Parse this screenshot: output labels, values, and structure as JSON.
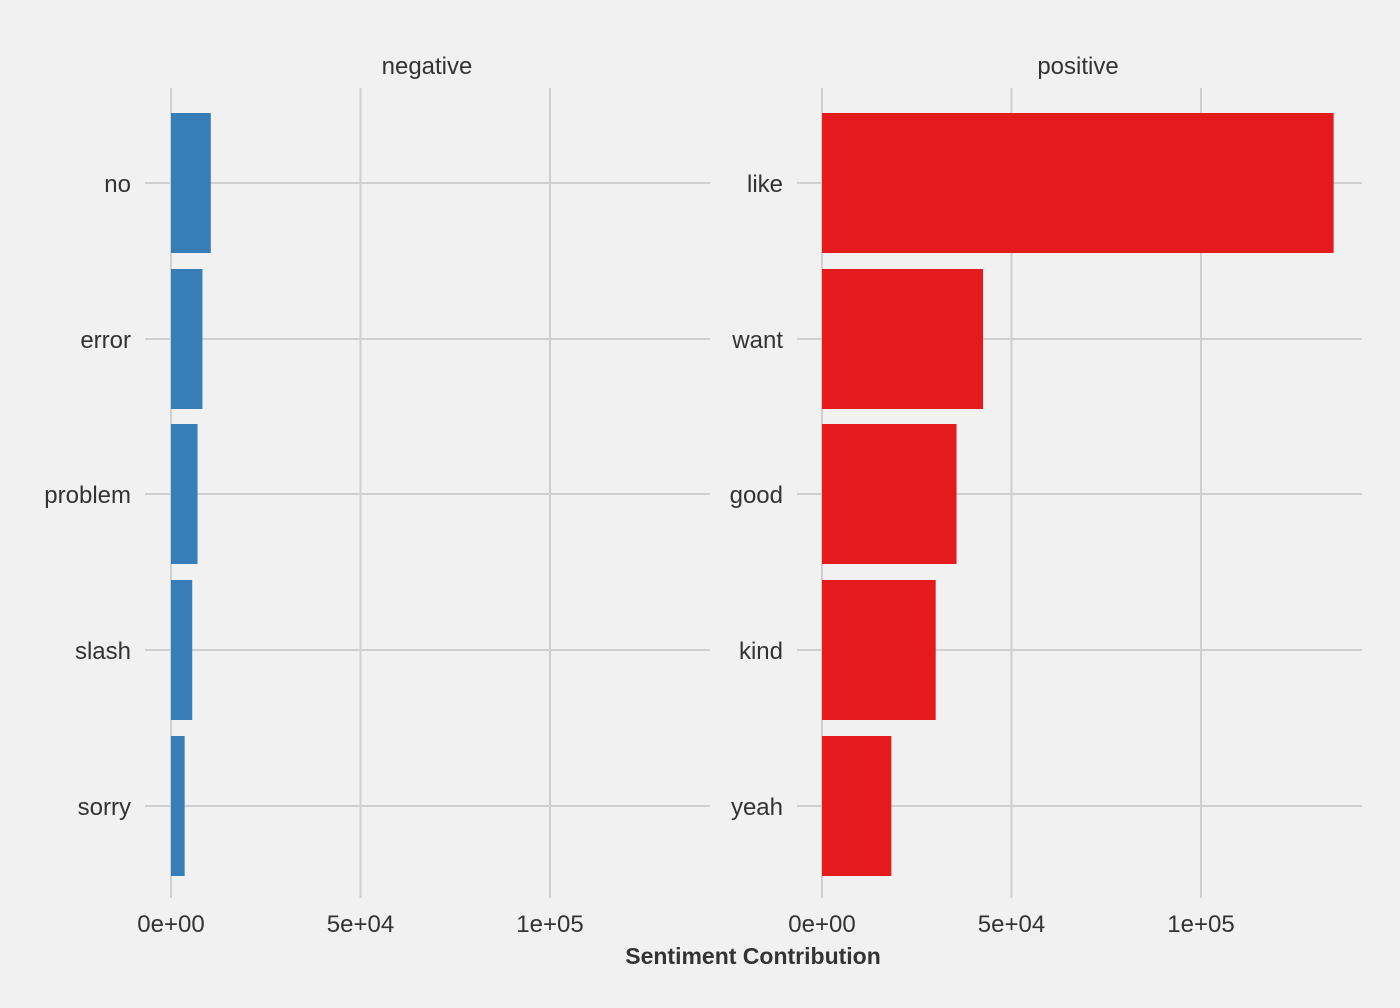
{
  "chart_data": {
    "type": "bar",
    "orientation": "horizontal",
    "xlabel": "Sentiment Contribution",
    "ylabel": "",
    "xlim": [
      0,
      140000
    ],
    "x_ticks": [
      {
        "value": 0,
        "label": "0e+00"
      },
      {
        "value": 50000,
        "label": "5e+04"
      },
      {
        "value": 100000,
        "label": "1e+05"
      }
    ],
    "grid": true,
    "legend": "none",
    "facets": [
      {
        "title": "negative",
        "color": "#377eb8",
        "categories": [
          "no",
          "error",
          "problem",
          "slash",
          "sorry"
        ],
        "values": [
          10500,
          8300,
          7000,
          5600,
          3600
        ]
      },
      {
        "title": "positive",
        "color": "#e41a1c",
        "categories": [
          "like",
          "want",
          "good",
          "kind",
          "yeah"
        ],
        "values": [
          135000,
          42500,
          35500,
          30000,
          18300
        ]
      }
    ]
  }
}
